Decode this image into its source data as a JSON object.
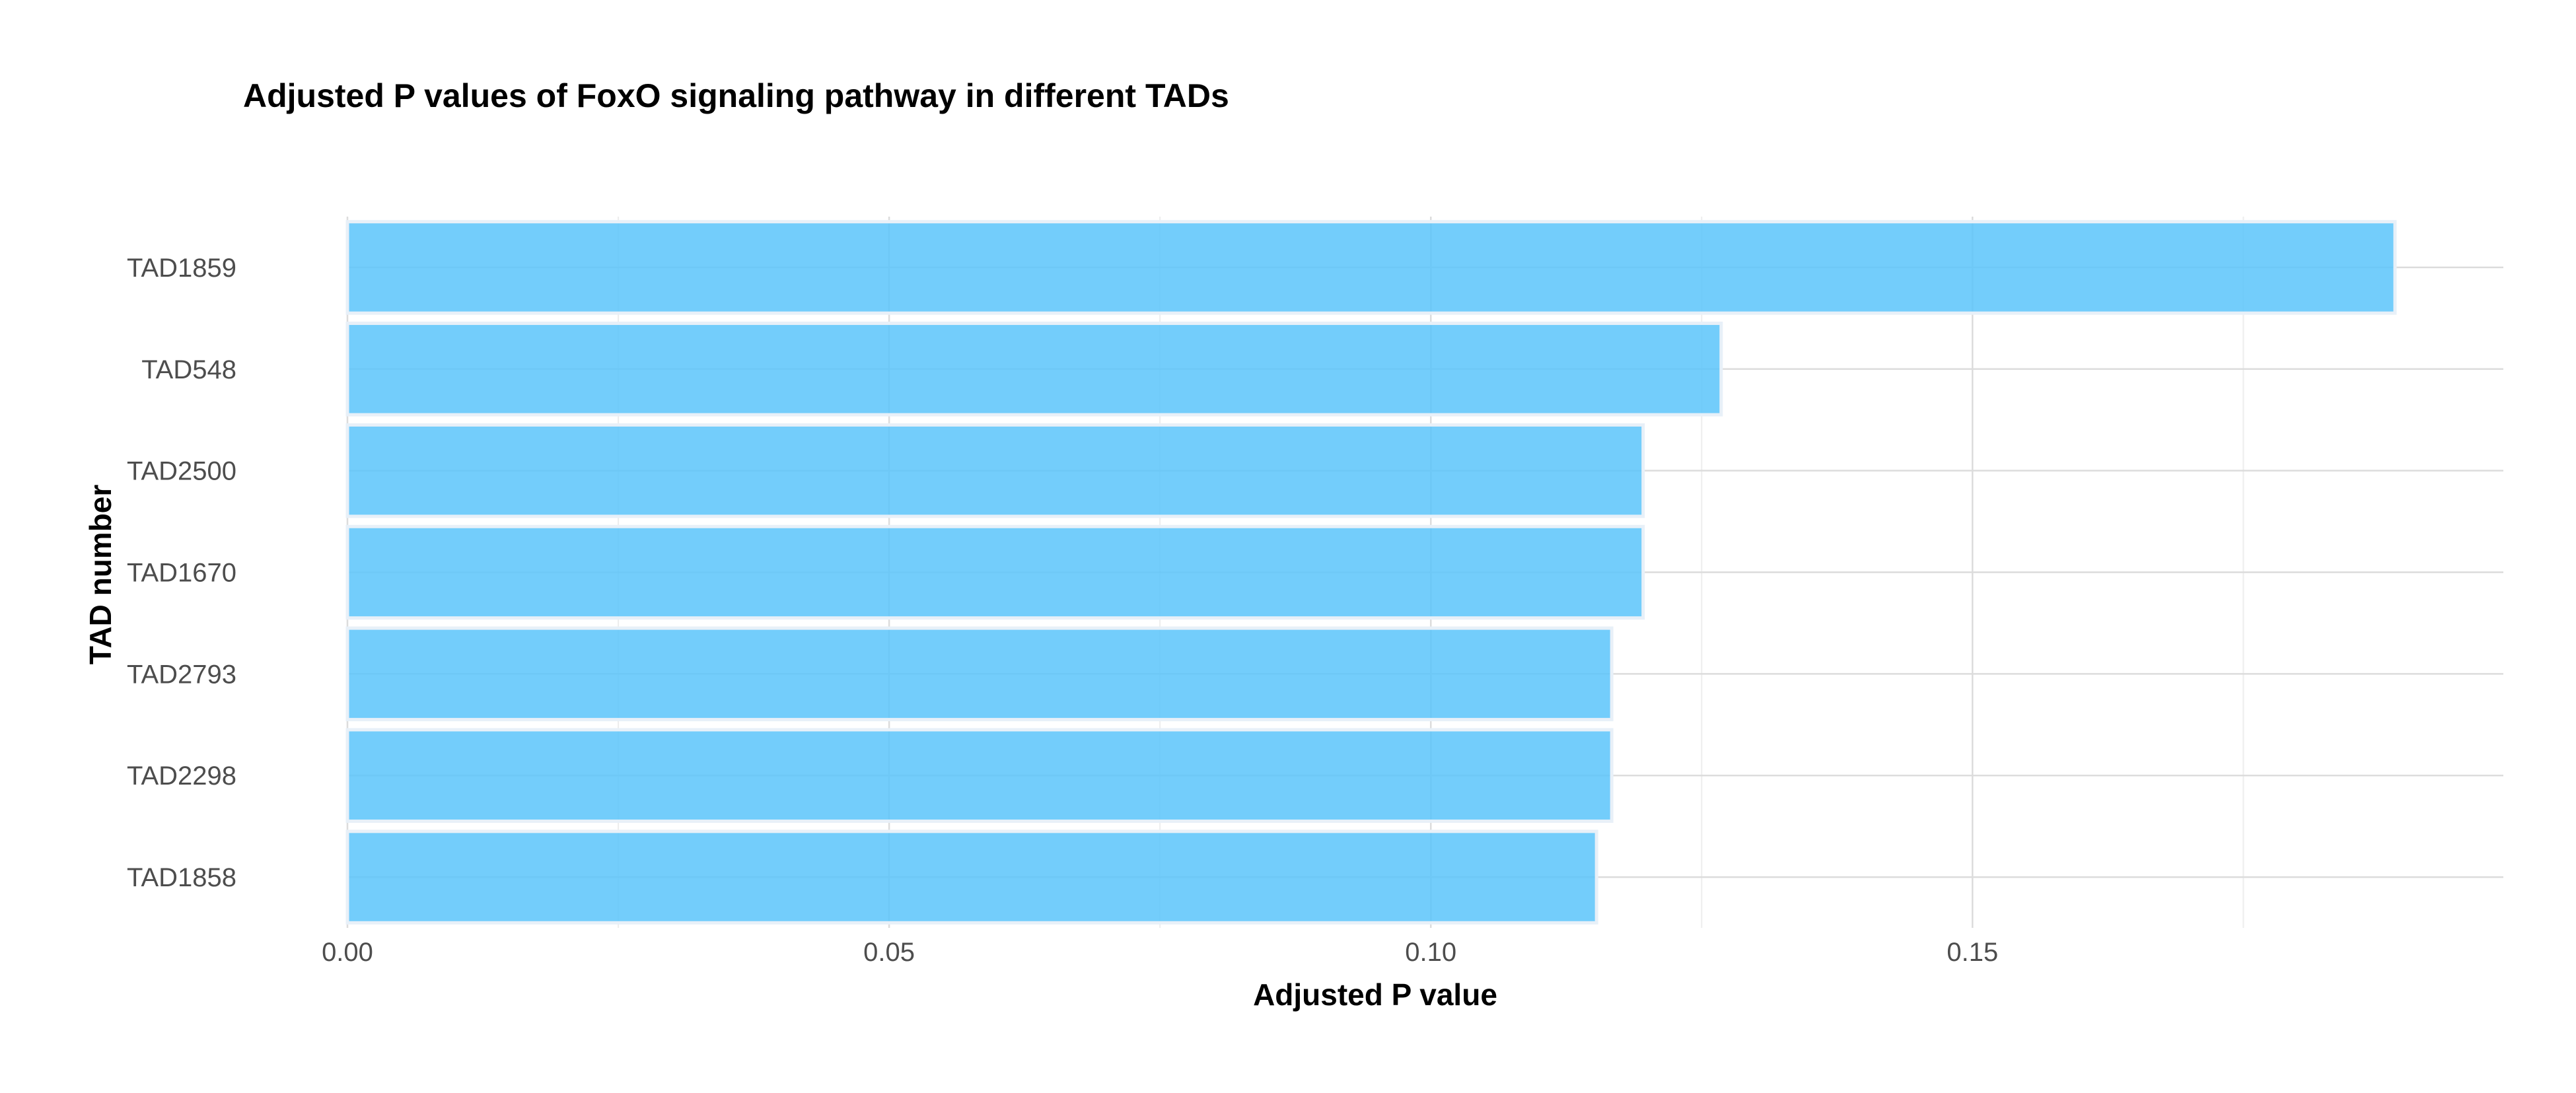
{
  "chart_data": {
    "type": "bar",
    "orientation": "horizontal",
    "title": "Adjusted P values of FoxO signaling pathway in different TADs",
    "xlabel": "Adjusted P value",
    "ylabel": "TAD number",
    "categories": [
      "TAD1859",
      "TAD548",
      "TAD2500",
      "TAD1670",
      "TAD2793",
      "TAD2298",
      "TAD1858"
    ],
    "values": [
      0.189,
      0.1268,
      0.1196,
      0.1196,
      0.1167,
      0.1167,
      0.1153
    ],
    "xlim": [
      0,
      0.199
    ],
    "x_ticks": [
      0,
      0.05,
      0.1,
      0.15
    ],
    "x_tick_labels": [
      "0.00",
      "0.05",
      "0.10",
      "0.15"
    ],
    "grid": true,
    "legend": "none",
    "colors": {
      "bar_fill": "#5bc4fa",
      "bar_stroke": "#e8f0f8",
      "grid_major": "#dcdcdc",
      "grid_minor": "#ededed",
      "tick_text": "#4d4d4d",
      "title_text": "#000000"
    }
  }
}
